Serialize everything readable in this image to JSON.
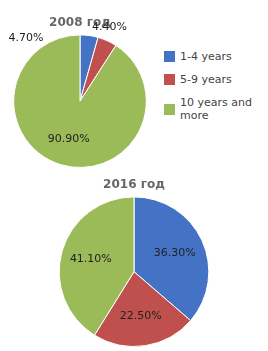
{
  "chart_data": [
    {
      "type": "pie",
      "title": "2008 год",
      "categories": [
        "1-4 years",
        "5-9 years",
        "10 years and\nmore"
      ],
      "values": [
        4.4,
        4.7,
        90.9
      ],
      "value_labels": [
        "4.40%",
        "4.70%",
        "90.90%"
      ],
      "colors": [
        "#4472C4",
        "#C0504D",
        "#9BBB59"
      ],
      "data_labels": true,
      "legend": "right"
    },
    {
      "type": "pie",
      "title": "2016 год",
      "categories": [
        "1-4 years",
        "5-9 years",
        "10 years and\nmore"
      ],
      "values": [
        36.3,
        22.5,
        41.1
      ],
      "value_labels": [
        "36.30%",
        "22.50%",
        "41.10%"
      ],
      "colors": [
        "#4472C4",
        "#C0504D",
        "#9BBB59"
      ],
      "data_labels": true
    }
  ]
}
